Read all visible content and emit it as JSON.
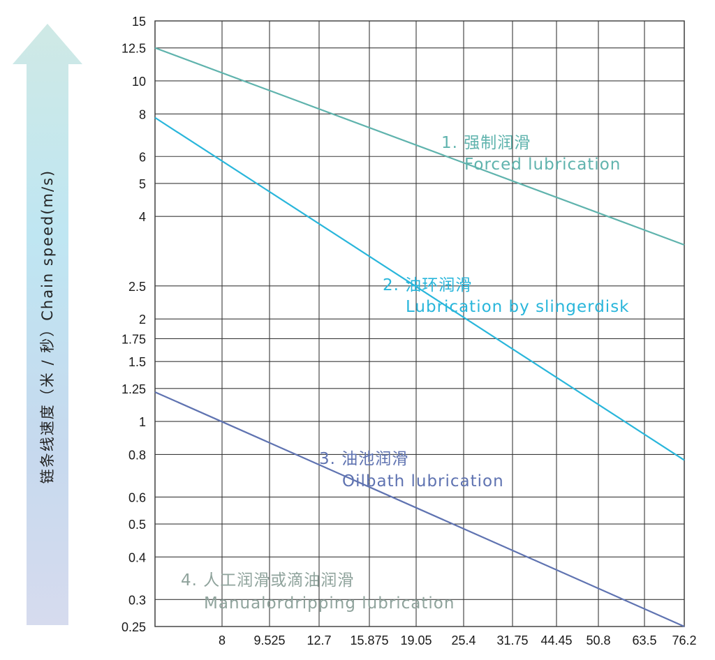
{
  "chart_data": {
    "type": "line",
    "title": "",
    "ylabel": "链条线速度（米 / 秒）Chain speed(m/s)",
    "xlabel": "",
    "y_scale": "log",
    "ylim": [
      0.25,
      15
    ],
    "y_ticks": [
      "15",
      "12.5",
      "10",
      "8",
      "6",
      "5",
      "4",
      "2.5",
      "2",
      "1.75",
      "1.5",
      "1.25",
      "1",
      "0.8",
      "0.6",
      "0.5",
      "0.4",
      "0.3",
      "0.25"
    ],
    "y_tick_values": [
      15,
      12.5,
      10,
      8,
      6,
      5,
      4,
      2.5,
      2,
      1.75,
      1.5,
      1.25,
      1,
      0.8,
      0.6,
      0.5,
      0.4,
      0.3,
      0.25
    ],
    "categories": [
      "",
      "8",
      "9.525",
      "12.7",
      "15.875",
      "19.05",
      "25.4",
      "31.75",
      "44.45",
      "50.8",
      "63.5",
      "76.2"
    ],
    "grid": true,
    "series": [
      {
        "name": "1. 强制润滑",
        "subtitle": "Forced lubrication",
        "color": "#5fb3ad",
        "start": {
          "category_index": 0,
          "value": 12.5
        },
        "end": {
          "category_index": 11,
          "value": 3.3
        }
      },
      {
        "name": "2. 油环润滑",
        "subtitle": "Lubrication by slingerdisk",
        "color": "#29b6db",
        "start": {
          "category_index": 0,
          "value": 7.8
        },
        "end": {
          "category_index": 11,
          "value": 0.77
        }
      },
      {
        "name": "3. 油池润滑",
        "subtitle": "Oilbath lubrication",
        "color": "#5f73b1",
        "start": {
          "category_index": 0,
          "value": 1.22
        },
        "end": {
          "category_index": 11,
          "value": 0.25
        }
      }
    ],
    "annotations": [
      {
        "label": "1. 强制润滑",
        "sub": "Forced lubrication",
        "color": "#5fb3ad"
      },
      {
        "label": "2. 油环润滑",
        "sub": "Lubrication by slingerdisk",
        "color": "#29b6db"
      },
      {
        "label": "3. 油池润滑",
        "sub": "Oilbath lubrication",
        "color": "#5f73b1"
      },
      {
        "label": "4. 人工润滑或滴油润滑",
        "sub": "Manualordripping lubrication",
        "color": "#8fa39c"
      }
    ]
  }
}
